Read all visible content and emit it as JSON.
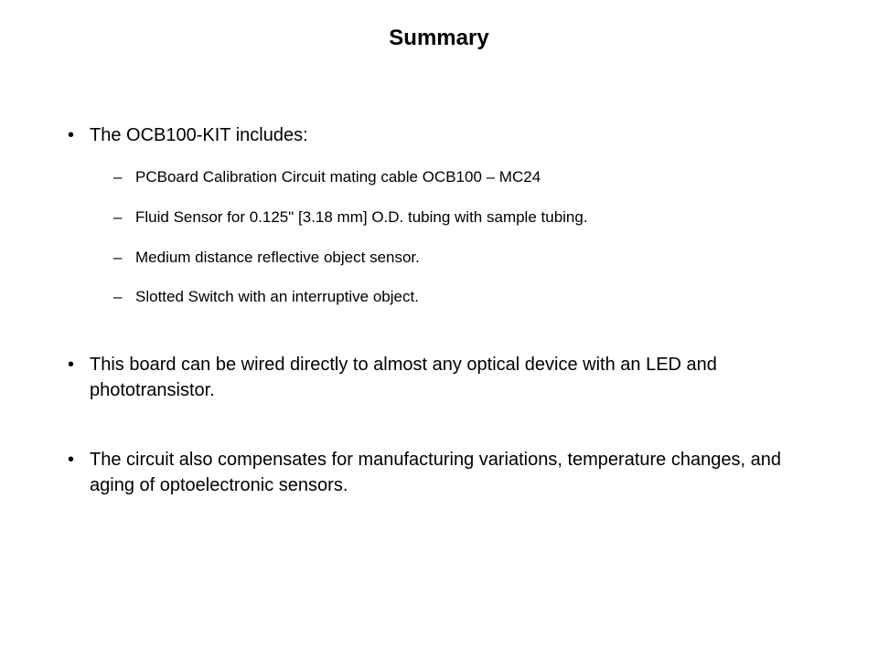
{
  "title": "Summary",
  "styling": {
    "background_color": "#ffffff",
    "text_color": "#000000",
    "title_fontsize": 24,
    "title_weight": "bold",
    "bullet_fontsize": 20,
    "sub_bullet_fontsize": 17,
    "font_family": "Verdana",
    "bullet_marker": "•",
    "sub_bullet_marker": "–"
  },
  "bullets": [
    {
      "text": "The OCB100-KIT includes:",
      "sub_items": [
        "PCBoard Calibration Circuit mating cable OCB100 – MC24",
        "Fluid Sensor for 0.125\" [3.18 mm] O.D. tubing with sample tubing.",
        "Medium distance reflective object sensor.",
        "Slotted Switch with an interruptive object."
      ]
    },
    {
      "text": "This board can be wired directly to almost any optical device with an LED and phototransistor.",
      "sub_items": []
    },
    {
      "text": "The circuit also compensates for manufacturing variations, temperature changes, and aging of optoelectronic sensors.",
      "sub_items": []
    }
  ]
}
